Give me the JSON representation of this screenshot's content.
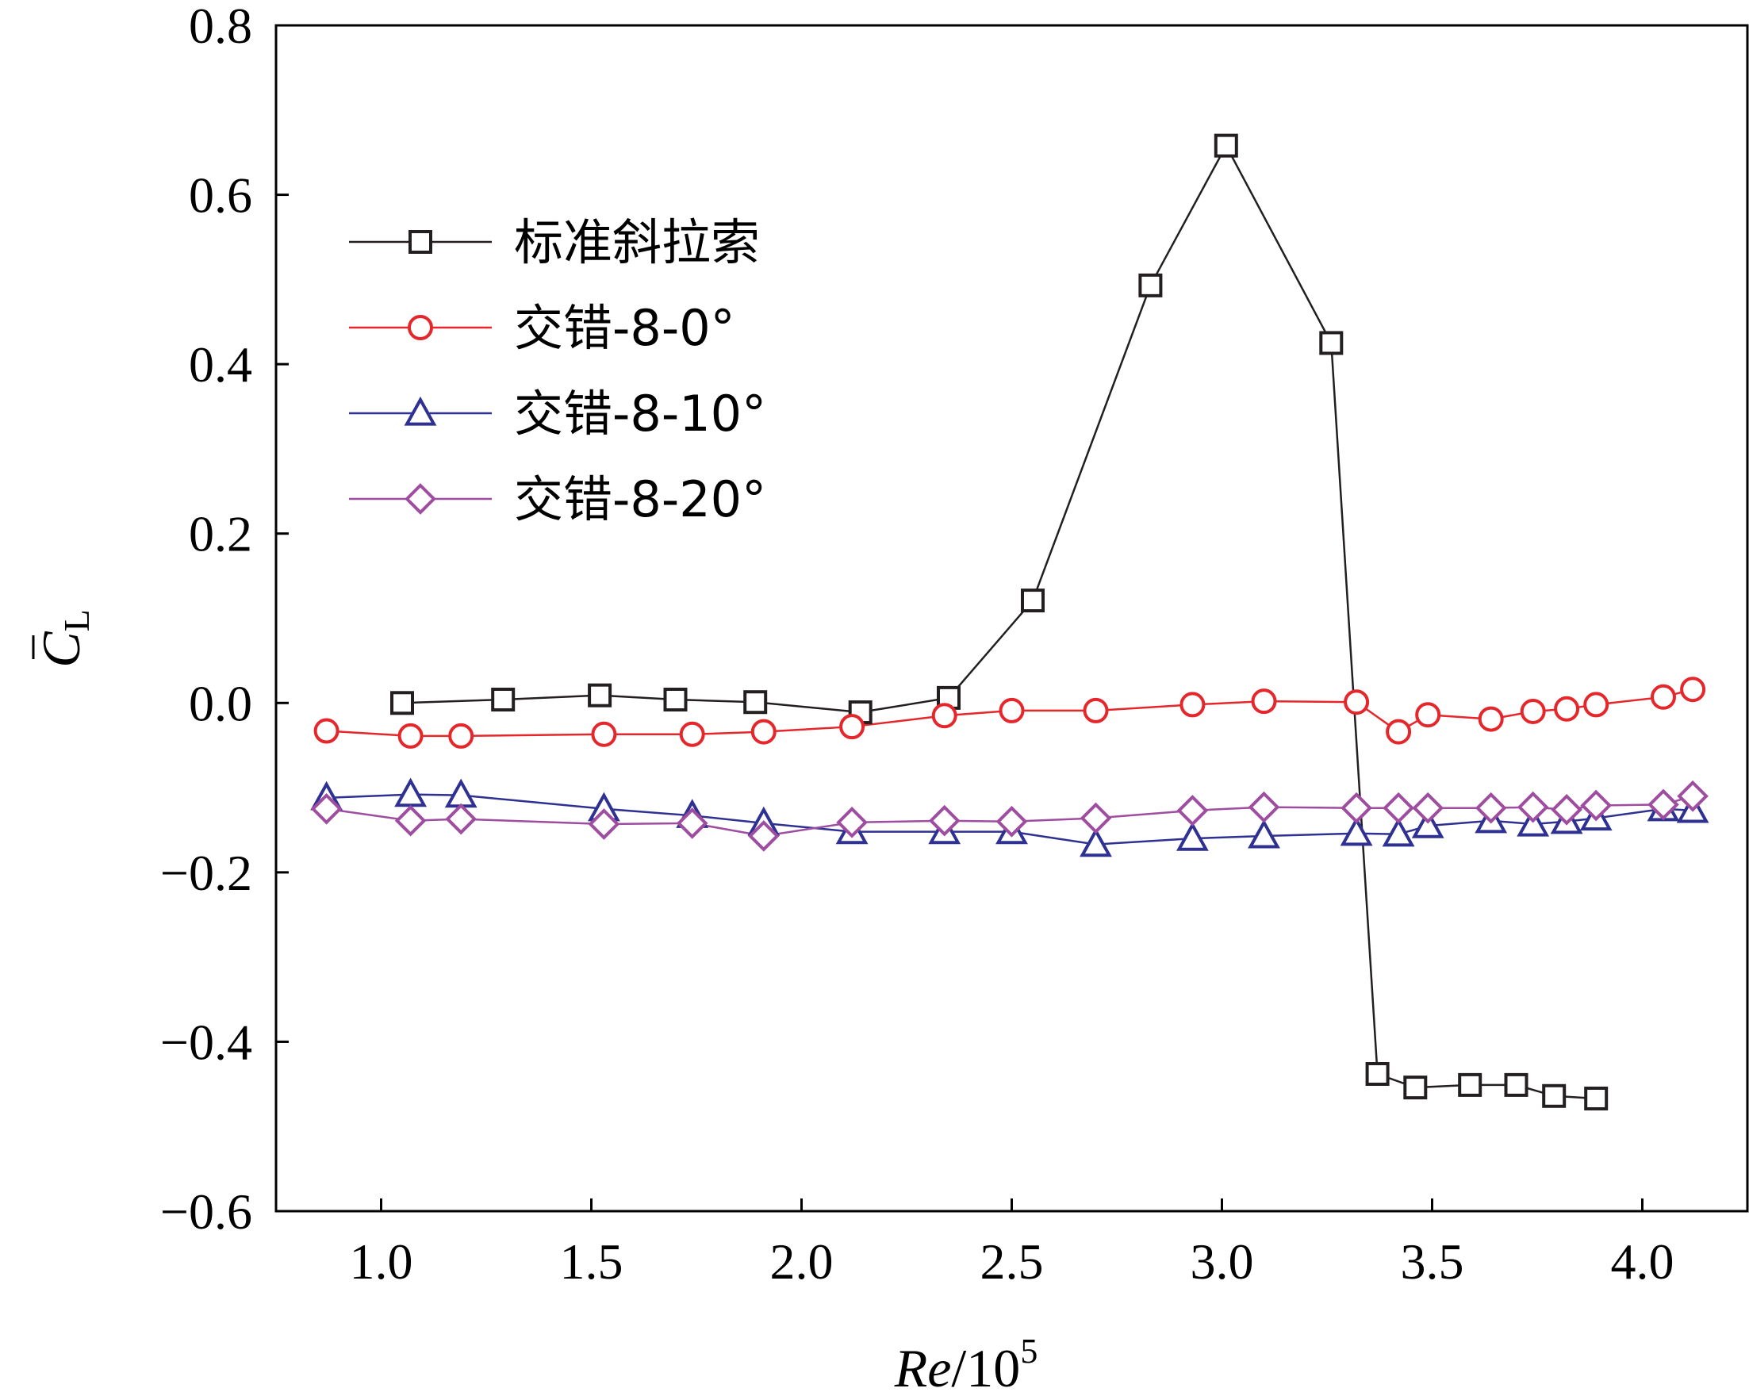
{
  "chart_data": {
    "type": "line",
    "x_axis": {
      "label_main": "Re",
      "label_mid": "/10",
      "label_sup": "5",
      "range": [
        0.75,
        4.25
      ],
      "ticks": [
        1.0,
        1.5,
        2.0,
        2.5,
        3.0,
        3.5,
        4.0
      ],
      "tick_labels": [
        "1.0",
        "1.5",
        "2.0",
        "2.5",
        "3.0",
        "3.5",
        "4.0"
      ]
    },
    "y_axis": {
      "label_main": "C",
      "label_sub": "L",
      "range": [
        -0.6,
        0.8
      ],
      "ticks": [
        -0.6,
        -0.4,
        -0.2,
        0.0,
        0.2,
        0.4,
        0.6,
        0.8
      ],
      "tick_labels": [
        "−0.6",
        "−0.4",
        "−0.2",
        "0.0",
        "0.2",
        "0.4",
        "0.6",
        "0.8"
      ]
    },
    "grid": false,
    "legend_position": "top-left",
    "series": [
      {
        "name": "标准斜拉索",
        "color": "#231f20",
        "marker": "square",
        "x": [
          1.05,
          1.29,
          1.52,
          1.7,
          1.89,
          2.14,
          2.35,
          2.55,
          2.83,
          3.01,
          3.26,
          3.37,
          3.46,
          3.59,
          3.7,
          3.79,
          3.89
        ],
        "y": [
          0.0,
          0.004,
          0.009,
          0.004,
          0.001,
          -0.011,
          0.006,
          0.121,
          0.493,
          0.658,
          0.425,
          -0.438,
          -0.454,
          -0.451,
          -0.451,
          -0.464,
          -0.467
        ]
      },
      {
        "name": "交错-8-0°",
        "color": "#e5262b",
        "marker": "circle",
        "x": [
          0.87,
          1.07,
          1.19,
          1.53,
          1.74,
          1.91,
          2.12,
          2.34,
          2.5,
          2.7,
          2.93,
          3.1,
          3.32,
          3.42,
          3.49,
          3.64,
          3.74,
          3.82,
          3.89,
          4.05,
          4.12
        ],
        "y": [
          -0.033,
          -0.039,
          -0.039,
          -0.037,
          -0.037,
          -0.034,
          -0.028,
          -0.015,
          -0.009,
          -0.009,
          -0.002,
          0.002,
          0.001,
          -0.034,
          -0.014,
          -0.019,
          -0.01,
          -0.007,
          -0.002,
          0.007,
          0.016
        ]
      },
      {
        "name": "交错-8-10°",
        "color": "#2e3192",
        "marker": "triangle",
        "x": [
          0.87,
          1.07,
          1.19,
          1.53,
          1.74,
          1.91,
          2.12,
          2.34,
          2.5,
          2.7,
          2.93,
          3.1,
          3.32,
          3.42,
          3.49,
          3.64,
          3.74,
          3.82,
          3.89,
          4.05,
          4.12
        ],
        "y": [
          -0.112,
          -0.108,
          -0.109,
          -0.125,
          -0.133,
          -0.142,
          -0.152,
          -0.152,
          -0.152,
          -0.167,
          -0.16,
          -0.157,
          -0.154,
          -0.155,
          -0.145,
          -0.139,
          -0.143,
          -0.14,
          -0.136,
          -0.125,
          -0.127
        ]
      },
      {
        "name": "交错-8-20°",
        "color": "#9e4da0",
        "marker": "diamond",
        "x": [
          0.87,
          1.07,
          1.19,
          1.53,
          1.74,
          1.91,
          2.12,
          2.34,
          2.5,
          2.7,
          2.93,
          3.1,
          3.32,
          3.42,
          3.49,
          3.64,
          3.74,
          3.82,
          3.89,
          4.05,
          4.12
        ],
        "y": [
          -0.125,
          -0.139,
          -0.137,
          -0.143,
          -0.142,
          -0.157,
          -0.141,
          -0.139,
          -0.14,
          -0.136,
          -0.127,
          -0.123,
          -0.124,
          -0.124,
          -0.124,
          -0.124,
          -0.123,
          -0.126,
          -0.121,
          -0.12,
          -0.11
        ]
      }
    ]
  }
}
